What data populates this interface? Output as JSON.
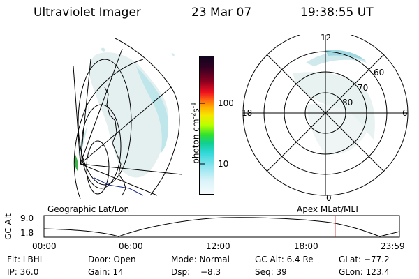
{
  "header": {
    "instrument": "Ultraviolet Imager",
    "date": "23 Mar 07",
    "time": "19:38:55 UT"
  },
  "colorbar": {
    "label": "photon cm",
    "label_exp1": "-2",
    "label_mid": "s",
    "label_exp2": "-1",
    "ticks": [
      "100",
      "10"
    ]
  },
  "polar_plot": {
    "mlt_labels": {
      "top": "12",
      "left": "18",
      "right": "6",
      "bottom": "0"
    },
    "lat_labels": [
      "60",
      "70",
      "80"
    ]
  },
  "timeline": {
    "left_title": "Geographic Lat/Lon",
    "right_title": "Apex MLat/MLT",
    "yaxis_label": "GC Alt",
    "y_ticks": [
      "9.0",
      "1.8"
    ],
    "x_ticks": [
      "00:00",
      "06:00",
      "12:00",
      "18:00",
      "23:59"
    ],
    "current_time_hours": 19.649,
    "marker_color": "#cc0000"
  },
  "info": {
    "flt": "Flt: LBHL",
    "door": "Door: Open",
    "mode": "Mode: Normal",
    "gc_alt": "GC Alt: 6.4 Re",
    "glat": "GLat: −77.2",
    "ip": "IP: 36.0",
    "gain": "Gain: 14",
    "dsp_label": "Dsp:",
    "dsp_value": "−8.3",
    "seq": "Seq: 39",
    "glon": "GLon: 123.4"
  }
}
